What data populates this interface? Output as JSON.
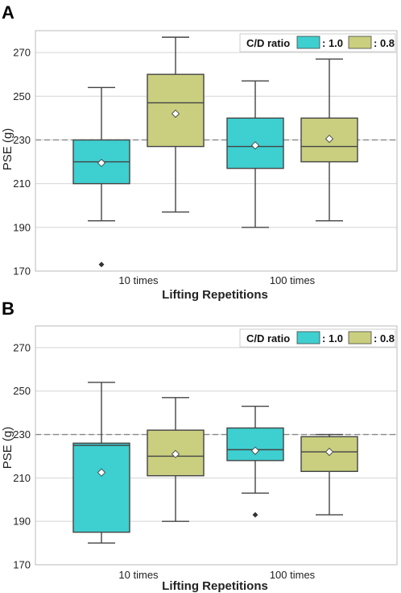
{
  "colors": {
    "series_1_0": "#3ecfd0",
    "series_0_8": "#c9cf7f",
    "reference_line": "#888888",
    "grid": "#d4d4d4",
    "box_edge": "#444444"
  },
  "chart_data": [
    {
      "type": "box",
      "panel_label": "A",
      "ylabel": "PSE (g)",
      "xlabel": "Lifting Repetitions",
      "categories": [
        "10 times",
        "100 times"
      ],
      "yticks": [
        170,
        190,
        210,
        230,
        250,
        270
      ],
      "ylim": [
        170,
        280
      ],
      "grid": true,
      "reference_line": 230,
      "legend": {
        "title": "C/D ratio",
        "placement": "top-right",
        "entries": [
          ": 1.0",
          ": 0.8"
        ]
      },
      "series": [
        {
          "legend_label": ": 1.0",
          "color": "#3ecfd0",
          "boxes": [
            {
              "category": "10 times",
              "whisker_low": 193,
              "q1": 210,
              "median": 220,
              "q3": 230,
              "whisker_high": 254,
              "mean": 219.5,
              "outliers": [
                173
              ]
            },
            {
              "category": "100 times",
              "whisker_low": 190,
              "q1": 217,
              "median": 227,
              "q3": 240,
              "whisker_high": 257,
              "mean": 227.5,
              "outliers": []
            }
          ]
        },
        {
          "legend_label": ": 0.8",
          "color": "#c9cf7f",
          "boxes": [
            {
              "category": "10 times",
              "whisker_low": 197,
              "q1": 227,
              "median": 247,
              "q3": 260,
              "whisker_high": 277,
              "mean": 242,
              "outliers": []
            },
            {
              "category": "100 times",
              "whisker_low": 193,
              "q1": 220,
              "median": 227,
              "q3": 240,
              "whisker_high": 267,
              "mean": 230.5,
              "outliers": []
            }
          ]
        }
      ]
    },
    {
      "type": "box",
      "panel_label": "B",
      "ylabel": "PSE (g)",
      "xlabel": "Lifting Repetitions",
      "categories": [
        "10 times",
        "100 times"
      ],
      "yticks": [
        170,
        190,
        210,
        230,
        250,
        270
      ],
      "ylim": [
        170,
        280
      ],
      "grid": true,
      "reference_line": 230,
      "legend": {
        "title": "C/D ratio",
        "placement": "top-right",
        "entries": [
          ": 1.0",
          ": 0.8"
        ]
      },
      "series": [
        {
          "legend_label": ": 1.0",
          "color": "#3ecfd0",
          "boxes": [
            {
              "category": "10 times",
              "whisker_low": 180,
              "q1": 185,
              "median": 225,
              "q3": 226,
              "whisker_high": 254,
              "mean": 212.5,
              "outliers": []
            },
            {
              "category": "100 times",
              "whisker_low": 203,
              "q1": 218,
              "median": 223,
              "q3": 233,
              "whisker_high": 243,
              "mean": 222.5,
              "outliers": [
                193
              ]
            }
          ]
        },
        {
          "legend_label": ": 0.8",
          "color": "#c9cf7f",
          "boxes": [
            {
              "category": "10 times",
              "whisker_low": 190,
              "q1": 211,
              "median": 220,
              "q3": 232,
              "whisker_high": 247,
              "mean": 221,
              "outliers": []
            },
            {
              "category": "100 times",
              "whisker_low": 193,
              "q1": 213,
              "median": 222,
              "q3": 229,
              "whisker_high": 230,
              "mean": 222,
              "outliers": []
            }
          ]
        }
      ]
    }
  ]
}
